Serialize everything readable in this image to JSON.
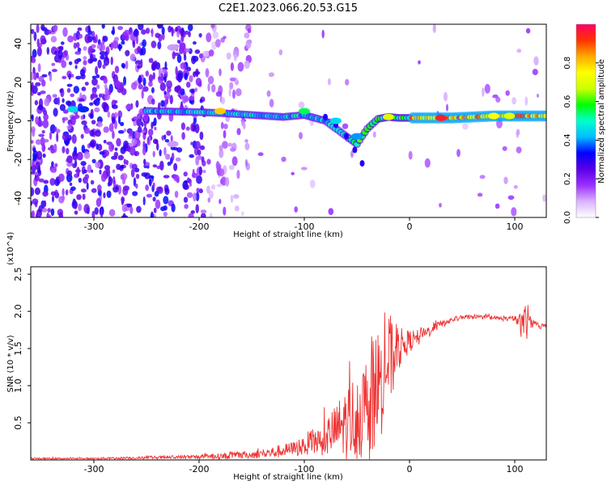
{
  "title": "C2E1.2023.066.20.53.G15",
  "chart_data": [
    {
      "type": "heatmap",
      "xlabel": "Height of straight line (km)",
      "ylabel": "Frequency (Hz)",
      "xlim": [
        -360,
        130
      ],
      "ylim": [
        -50,
        50
      ],
      "xticks": [
        -300,
        -200,
        -100,
        0,
        100
      ],
      "yticks": [
        -40,
        -20,
        0,
        20,
        40
      ],
      "colorbar": {
        "label": "Normalized spectral amplitude",
        "range": [
          0,
          1
        ],
        "ticks": [
          0.0,
          0.2,
          0.4,
          0.6,
          0.8
        ],
        "colors": [
          "#ffffff",
          "#d9b3ff",
          "#9b30ff",
          "#5a00e6",
          "#0000ff",
          "#00bfff",
          "#00ffcc",
          "#00ff00",
          "#ccff00",
          "#ffff00",
          "#ffaa00",
          "#ff3300",
          "#ff0066"
        ]
      },
      "ridge": {
        "x": [
          -320,
          -300,
          -240,
          -200,
          -180,
          -150,
          -120,
          -100,
          -80,
          -60,
          -50,
          -40,
          -30,
          -20,
          -10,
          0,
          20,
          40,
          60,
          80,
          100,
          120,
          130
        ],
        "y": [
          6,
          6,
          5,
          4.5,
          4,
          3,
          2,
          3,
          0,
          -8,
          -12,
          -4,
          1,
          2,
          1.5,
          1.5,
          1.5,
          1.5,
          2,
          2.5,
          2.5,
          2.5,
          2.5
        ]
      },
      "branch": {
        "x": [
          -80,
          -70,
          -60,
          -52,
          -45
        ],
        "y": [
          2,
          -2,
          -8,
          -15,
          -22
        ]
      },
      "blobs": [
        {
          "x": -320,
          "y": 6,
          "v": 0.45
        },
        {
          "x": -310,
          "y": 6,
          "v": 0.35
        },
        {
          "x": -225,
          "y": 38,
          "v": 0.1
        },
        {
          "x": -225,
          "y": -12,
          "v": 0.1
        },
        {
          "x": -180,
          "y": 5,
          "v": 0.8
        },
        {
          "x": -100,
          "y": 5,
          "v": 0.55
        },
        {
          "x": -70,
          "y": 0,
          "v": 0.45
        },
        {
          "x": -50,
          "y": -8,
          "v": 0.4
        },
        {
          "x": -20,
          "y": 2,
          "v": 0.7
        },
        {
          "x": 30,
          "y": 1.5,
          "v": 0.95
        },
        {
          "x": 80,
          "y": 2.5,
          "v": 0.75
        },
        {
          "x": 95,
          "y": 2.5,
          "v": 0.7
        }
      ]
    },
    {
      "type": "line",
      "xlabel": "Height of straight line (km)",
      "ylabel": "SNR (10 * v/v)",
      "multiplier": "(x10^4)",
      "xlim": [
        -360,
        130
      ],
      "ylim": [
        0,
        2.6
      ],
      "xticks": [
        -300,
        -200,
        -100,
        0,
        100
      ],
      "yticks": [
        0.5,
        1.0,
        1.5,
        2.0,
        2.5
      ],
      "color": "#ee3333",
      "series": [
        {
          "x": [
            -360,
            -300,
            -250,
            -200,
            -180,
            -150,
            -130,
            -110,
            -100,
            -90,
            -80,
            -70,
            -60,
            -50,
            -40,
            -35,
            -30,
            -25,
            -20,
            -15,
            -10,
            -5,
            0,
            10,
            20,
            30,
            40,
            50,
            60,
            70,
            80,
            90,
            100,
            105,
            108,
            110,
            112,
            115,
            120,
            125,
            130
          ],
          "y": [
            0.02,
            0.02,
            0.03,
            0.04,
            0.05,
            0.07,
            0.1,
            0.15,
            0.2,
            0.25,
            0.3,
            0.4,
            0.5,
            0.6,
            0.7,
            0.8,
            1.0,
            1.2,
            1.3,
            1.4,
            1.5,
            1.55,
            1.6,
            1.65,
            1.75,
            1.83,
            1.88,
            1.92,
            1.93,
            1.92,
            1.91,
            1.9,
            1.9,
            1.85,
            1.75,
            2.0,
            1.9,
            1.85,
            1.82,
            1.8,
            1.8
          ],
          "spread": [
            0.01,
            0.01,
            0.02,
            0.03,
            0.04,
            0.05,
            0.08,
            0.1,
            0.15,
            0.2,
            0.25,
            0.35,
            0.5,
            0.6,
            0.7,
            0.8,
            0.8,
            0.8,
            0.7,
            0.5,
            0.3,
            0.2,
            0.15,
            0.1,
            0.08,
            0.05,
            0.04,
            0.03,
            0.03,
            0.03,
            0.03,
            0.03,
            0.04,
            0.12,
            0.25,
            0.6,
            0.2,
            0.08,
            0.05,
            0.04,
            0.04
          ]
        }
      ]
    }
  ]
}
